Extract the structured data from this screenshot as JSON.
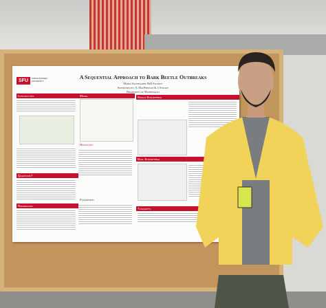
{
  "poster": {
    "logo": "SFU",
    "university": "SIMON FRASER UNIVERSITY",
    "title": "A Sequential Approach to Bark Beetle Outbreaks",
    "author": "Mahdi Salehzadeh, PhD Student",
    "supervisors": "Supervised by: A. MacPherson & J. Stockie",
    "department": "Department of Mathematics",
    "sections": [
      "Introduction",
      "Model",
      "Single Susceptible",
      "Highlights",
      "Dual Susceptible",
      "Questions?",
      "Parameters",
      "References",
      "Takeaways"
    ]
  }
}
